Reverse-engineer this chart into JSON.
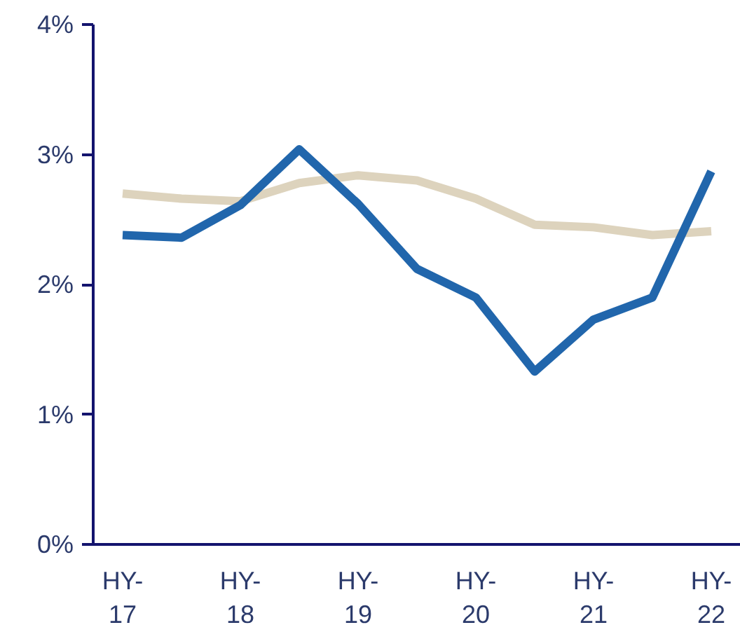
{
  "chart_data": {
    "type": "line",
    "categories": [
      "HY-17",
      null,
      "HY-18",
      null,
      "HY-19",
      null,
      "HY-20",
      null,
      "HY-21",
      null,
      "HY-22"
    ],
    "series": [
      {
        "color": "#ddd3bd",
        "values": [
          2.7,
          2.66,
          2.64,
          2.78,
          2.84,
          2.8,
          2.66,
          2.46,
          2.44,
          2.38,
          2.41
        ]
      },
      {
        "color": "#2166ac",
        "values": [
          2.38,
          2.36,
          2.61,
          3.04,
          2.62,
          2.12,
          1.9,
          1.33,
          1.73,
          1.9,
          2.87
        ]
      }
    ],
    "ylim": [
      0,
      4
    ],
    "yticks": [
      {
        "value": 0,
        "label": "0%"
      },
      {
        "value": 1,
        "label": "1%"
      },
      {
        "value": 2,
        "label": "2%"
      },
      {
        "value": 3,
        "label": "3%"
      },
      {
        "value": 4,
        "label": "4%"
      }
    ],
    "grid": false
  }
}
